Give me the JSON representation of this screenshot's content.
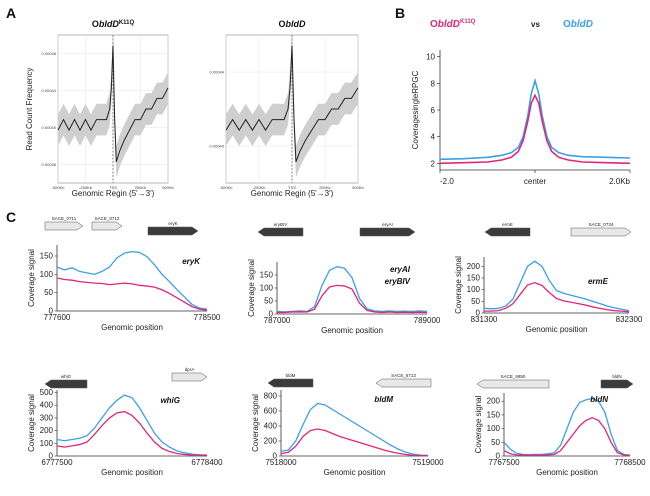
{
  "panels": {
    "a": "A",
    "b": "B",
    "c": "C"
  },
  "colors": {
    "mutant": "#e0267a",
    "wt": "#3aa0e8",
    "band": "#cfcfcf",
    "line": "#222222",
    "arrow_dark": "#3b3b3b",
    "arrow_light": "#e8e8e8"
  },
  "chart_data": [
    {
      "id": "A1",
      "type": "line",
      "title_base": "O",
      "title_main": "bldD",
      "title_sup": "K11Q",
      "xlabel": "Genomic Regin (5'→3')",
      "ylabel": "Read Count Frequency",
      "xticks": [
        "-500Kb",
        "-250Kb",
        "TSS",
        "250Kb",
        "500Kb"
      ],
      "yticks": [
        "0.00036",
        "0.00040",
        "0.00044",
        "0.00048"
      ],
      "xlim": [
        -500,
        500
      ],
      "ylim": [
        0.00035,
        0.00049
      ],
      "x": [
        -500,
        -450,
        -400,
        -350,
        -300,
        -250,
        -200,
        -150,
        -100,
        -60,
        -30,
        -15,
        0,
        15,
        30,
        60,
        100,
        150,
        200,
        250,
        300,
        350,
        400,
        450,
        500
      ],
      "y": [
        0.0004,
        0.00041,
        0.0004,
        0.00041,
        0.0004,
        0.00041,
        0.0004,
        0.00041,
        0.00041,
        0.00041,
        0.00042,
        0.00044,
        0.00048,
        0.00041,
        0.00037,
        0.00038,
        0.00039,
        0.0004,
        0.00041,
        0.00041,
        0.00042,
        0.00042,
        0.00043,
        0.00043,
        0.00044
      ],
      "band": 1.5e-05
    },
    {
      "id": "A2",
      "type": "line",
      "title_base": "O",
      "title_main": "bldD",
      "xlabel": "Genomic Regin (5'→3')",
      "ylabel": "",
      "xticks": [
        "-500Kb",
        "-250Kb",
        "TSS",
        "250Kb",
        "500Kb"
      ],
      "yticks": [
        "0.00040",
        "0.00044"
      ],
      "xlim": [
        -500,
        500
      ],
      "ylim": [
        0.00036,
        0.0005
      ],
      "x": [
        -500,
        -450,
        -400,
        -350,
        -300,
        -250,
        -200,
        -150,
        -100,
        -60,
        -30,
        -15,
        0,
        15,
        30,
        60,
        100,
        150,
        200,
        250,
        300,
        350,
        400,
        450,
        500
      ],
      "y": [
        0.00041,
        0.00042,
        0.00041,
        0.00042,
        0.00041,
        0.00042,
        0.00041,
        0.00042,
        0.00042,
        0.00042,
        0.00043,
        0.00045,
        0.00049,
        0.00042,
        0.00038,
        0.00039,
        0.0004,
        0.00041,
        0.00042,
        0.00042,
        0.00043,
        0.00043,
        0.00044,
        0.00044,
        0.00045
      ],
      "band": 1.5e-05
    },
    {
      "id": "B",
      "type": "line",
      "title_left_base": "O",
      "title_left_main": "bldD",
      "title_left_sup": "K11Q",
      "title_vs": "vs",
      "title_right_base": "O",
      "title_right_main": "bldD",
      "ylabel": "CoveragesingleRPGC",
      "xticks": [
        "-2.0",
        "center",
        "2.0Kb"
      ],
      "yticks": [
        2,
        4,
        6,
        8,
        10
      ],
      "xlim": [
        -2,
        2
      ],
      "ylim": [
        1.5,
        10.5
      ],
      "x": [
        -2.0,
        -1.5,
        -1.0,
        -0.7,
        -0.5,
        -0.35,
        -0.25,
        -0.15,
        -0.08,
        0.0,
        0.08,
        0.15,
        0.25,
        0.35,
        0.5,
        0.7,
        1.0,
        1.5,
        2.0
      ],
      "series": [
        {
          "color": "#3aa0e8",
          "values": [
            2.3,
            2.35,
            2.45,
            2.6,
            2.8,
            3.2,
            4.0,
            5.6,
            7.2,
            8.2,
            7.2,
            5.6,
            4.0,
            3.2,
            2.8,
            2.6,
            2.5,
            2.45,
            2.4
          ]
        },
        {
          "color": "#e0267a",
          "values": [
            2.0,
            2.05,
            2.1,
            2.25,
            2.45,
            2.9,
            3.7,
            5.2,
            6.5,
            7.1,
            6.5,
            5.2,
            3.7,
            2.9,
            2.45,
            2.25,
            2.1,
            2.05,
            2.0
          ]
        }
      ]
    },
    {
      "id": "C1",
      "type": "line",
      "gene": "eryK",
      "gene2": "",
      "ylabel": "Coverage signal",
      "xlabel": "Genomic position",
      "xticks": [
        "777600",
        "778500"
      ],
      "yticks": [
        0,
        50,
        100,
        150
      ],
      "ylim": [
        0,
        180
      ],
      "arrows": [
        {
          "label": "SACE_0711",
          "dir": "right",
          "dark": false
        },
        {
          "label": "SACE_0712",
          "dir": "right",
          "dark": false
        },
        {
          "label": "eryK",
          "dir": "right",
          "dark": true
        }
      ],
      "x": [
        0,
        0.05,
        0.1,
        0.15,
        0.2,
        0.25,
        0.3,
        0.35,
        0.4,
        0.45,
        0.5,
        0.55,
        0.6,
        0.65,
        0.7,
        0.75,
        0.8,
        0.85,
        0.9,
        0.95,
        1.0
      ],
      "series": [
        {
          "color": "#3aa0e8",
          "values": [
            120,
            112,
            118,
            108,
            104,
            100,
            108,
            120,
            145,
            158,
            162,
            160,
            148,
            126,
            100,
            80,
            58,
            38,
            18,
            8,
            5
          ]
        },
        {
          "color": "#e0267a",
          "values": [
            90,
            86,
            84,
            80,
            78,
            76,
            75,
            72,
            74,
            76,
            74,
            70,
            68,
            65,
            58,
            48,
            36,
            24,
            12,
            5,
            2
          ]
        }
      ]
    },
    {
      "id": "C2",
      "type": "line",
      "gene": "eryAI",
      "gene2": "eryBIV",
      "ylabel": "Coverage signal",
      "xlabel": "Genomic position",
      "xticks": [
        "787000",
        "789000"
      ],
      "yticks": [
        0,
        50,
        100,
        150
      ],
      "ylim": [
        0,
        200
      ],
      "arrows": [
        {
          "label": "eryBIV",
          "dir": "left",
          "dark": true
        },
        {
          "label": "eryAI",
          "dir": "right",
          "dark": true
        }
      ],
      "x": [
        0,
        0.05,
        0.1,
        0.15,
        0.2,
        0.25,
        0.3,
        0.35,
        0.4,
        0.45,
        0.5,
        0.55,
        0.6,
        0.65,
        0.7,
        0.75,
        0.8,
        0.85,
        0.9,
        0.95,
        1.0
      ],
      "series": [
        {
          "color": "#3aa0e8",
          "values": [
            10,
            8,
            10,
            12,
            10,
            28,
            110,
            168,
            182,
            176,
            140,
            60,
            20,
            12,
            10,
            12,
            10,
            11,
            10,
            12,
            10
          ]
        },
        {
          "color": "#e0267a",
          "values": [
            6,
            6,
            8,
            8,
            8,
            18,
            70,
            104,
            110,
            108,
            96,
            42,
            14,
            8,
            6,
            8,
            6,
            7,
            6,
            7,
            6
          ]
        }
      ]
    },
    {
      "id": "C3",
      "type": "line",
      "gene": "ermE",
      "gene2": "",
      "ylabel": "Coverage signal",
      "xlabel": "Genomic position",
      "xticks": [
        "831300",
        "832300"
      ],
      "yticks": [
        0,
        50,
        100,
        150,
        200
      ],
      "ylim": [
        0,
        240
      ],
      "arrows": [
        {
          "label": "ermE",
          "dir": "left",
          "dark": true
        },
        {
          "label": "SACE_0734",
          "dir": "right",
          "dark": false
        }
      ],
      "x": [
        0,
        0.05,
        0.1,
        0.15,
        0.2,
        0.25,
        0.3,
        0.35,
        0.4,
        0.45,
        0.5,
        0.55,
        0.6,
        0.65,
        0.7,
        0.75,
        0.8,
        0.85,
        0.9,
        0.95,
        1.0
      ],
      "series": [
        {
          "color": "#3aa0e8",
          "values": [
            20,
            18,
            20,
            30,
            60,
            130,
            200,
            222,
            200,
            140,
            96,
            84,
            76,
            68,
            60,
            50,
            40,
            30,
            22,
            16,
            10
          ]
        },
        {
          "color": "#e0267a",
          "values": [
            8,
            8,
            10,
            20,
            40,
            80,
            120,
            130,
            118,
            88,
            62,
            52,
            46,
            40,
            34,
            26,
            20,
            14,
            10,
            8,
            5
          ]
        }
      ]
    },
    {
      "id": "C4",
      "type": "line",
      "gene": "whiG",
      "gene2": "",
      "ylabel": "Coverage signal",
      "xlabel": "Genomic position",
      "xticks": [
        "6777500",
        "6778400"
      ],
      "yticks": [
        0,
        100,
        200,
        300,
        400,
        500
      ],
      "ylim": [
        0,
        520
      ],
      "arrows": [
        {
          "label": "whiG",
          "dir": "left",
          "dark": true
        },
        {
          "label": "dprA",
          "dir": "right",
          "dark": false
        }
      ],
      "x": [
        0,
        0.05,
        0.1,
        0.15,
        0.2,
        0.25,
        0.3,
        0.35,
        0.4,
        0.45,
        0.5,
        0.55,
        0.6,
        0.65,
        0.7,
        0.75,
        0.8,
        0.85,
        0.9,
        0.95,
        1.0
      ],
      "series": [
        {
          "color": "#3aa0e8",
          "values": [
            130,
            120,
            130,
            140,
            160,
            220,
            300,
            380,
            440,
            480,
            460,
            380,
            280,
            180,
            110,
            70,
            40,
            25,
            15,
            10,
            8
          ]
        },
        {
          "color": "#e0267a",
          "values": [
            80,
            70,
            80,
            90,
            110,
            170,
            240,
            300,
            340,
            350,
            320,
            260,
            180,
            110,
            60,
            35,
            20,
            12,
            8,
            6,
            5
          ]
        }
      ]
    },
    {
      "id": "C5",
      "type": "line",
      "gene": "bldM",
      "gene2": "",
      "ylabel": "Coverage signal",
      "xlabel": "Genomic position",
      "xticks": [
        "7518000",
        "7519000"
      ],
      "yticks": [
        0,
        200,
        400,
        600,
        800
      ],
      "ylim": [
        0,
        880
      ],
      "arrows": [
        {
          "label": "bldM",
          "dir": "left",
          "dark": true
        },
        {
          "label": "SACE_6713",
          "dir": "left",
          "dark": false
        }
      ],
      "x": [
        0,
        0.05,
        0.1,
        0.15,
        0.2,
        0.25,
        0.3,
        0.35,
        0.4,
        0.45,
        0.5,
        0.55,
        0.6,
        0.65,
        0.7,
        0.75,
        0.8,
        0.85,
        0.9,
        0.95,
        1.0
      ],
      "series": [
        {
          "color": "#3aa0e8",
          "values": [
            60,
            80,
            200,
            420,
            620,
            700,
            680,
            620,
            560,
            500,
            440,
            380,
            320,
            260,
            200,
            140,
            90,
            50,
            25,
            12,
            8
          ]
        },
        {
          "color": "#e0267a",
          "values": [
            30,
            50,
            130,
            260,
            340,
            360,
            340,
            300,
            260,
            230,
            200,
            170,
            140,
            110,
            80,
            55,
            35,
            20,
            10,
            6,
            4
          ]
        }
      ]
    },
    {
      "id": "C6",
      "type": "line",
      "gene": "bldN",
      "gene2": "",
      "ylabel": "Coverage signal",
      "xlabel": "Genomic position",
      "xticks": [
        "7767500",
        "7768500"
      ],
      "yticks": [
        0,
        50,
        100,
        150,
        200
      ],
      "ylim": [
        0,
        230
      ],
      "arrows": [
        {
          "label": "SACE_6950",
          "dir": "left",
          "dark": false
        },
        {
          "label": "bldN",
          "dir": "right",
          "dark": true
        }
      ],
      "x": [
        0,
        0.05,
        0.1,
        0.15,
        0.2,
        0.25,
        0.3,
        0.35,
        0.4,
        0.45,
        0.5,
        0.55,
        0.6,
        0.65,
        0.7,
        0.75,
        0.8,
        0.85,
        0.9,
        0.95,
        1.0
      ],
      "series": [
        {
          "color": "#3aa0e8",
          "values": [
            50,
            25,
            10,
            6,
            5,
            6,
            6,
            8,
            12,
            40,
            100,
            160,
            195,
            205,
            210,
            200,
            160,
            80,
            20,
            6,
            3
          ]
        },
        {
          "color": "#e0267a",
          "values": [
            20,
            8,
            4,
            3,
            3,
            3,
            3,
            4,
            6,
            20,
            50,
            80,
            110,
            130,
            140,
            130,
            100,
            50,
            12,
            4,
            2
          ]
        }
      ]
    }
  ]
}
